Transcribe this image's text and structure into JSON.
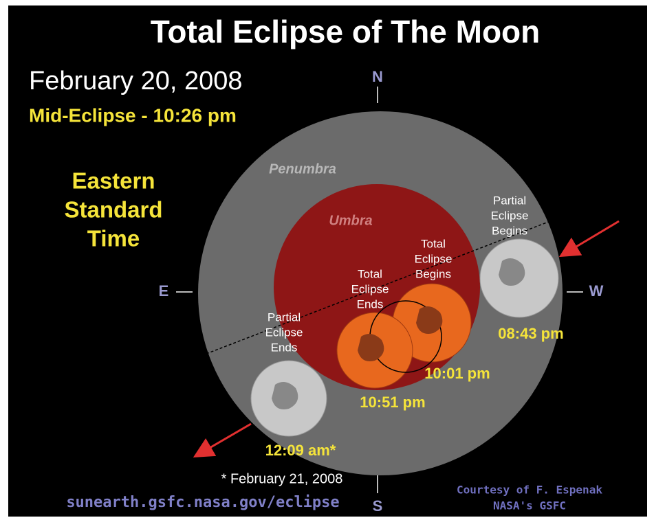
{
  "title": "Total Eclipse of The Moon",
  "date": "February 20, 2008",
  "mid_eclipse": "Mid-Eclipse - 10:26 pm",
  "time_zone": [
    "Eastern",
    "Standard",
    "Time"
  ],
  "compass": {
    "north": "N",
    "south": "S",
    "east": "E",
    "west": "W"
  },
  "regions": {
    "penumbra": "Penumbra",
    "umbra": "Umbra"
  },
  "stages": [
    {
      "label": [
        "Partial",
        "Eclipse",
        "Begins"
      ],
      "time": "08:43 pm"
    },
    {
      "label": [
        "Total",
        "Eclipse",
        "Begins"
      ],
      "time": "10:01 pm"
    },
    {
      "label": [
        "Total",
        "Eclipse",
        "Ends"
      ],
      "time": "10:51 pm"
    },
    {
      "label": [
        "Partial",
        "Eclipse",
        "Ends"
      ],
      "time": "12:09 am*"
    }
  ],
  "footnote": "* February 21, 2008",
  "url": "sunearth.gsfc.nasa.gov/eclipse",
  "credit": [
    "Courtesy of F. Espenak",
    "NASA's GSFC"
  ]
}
